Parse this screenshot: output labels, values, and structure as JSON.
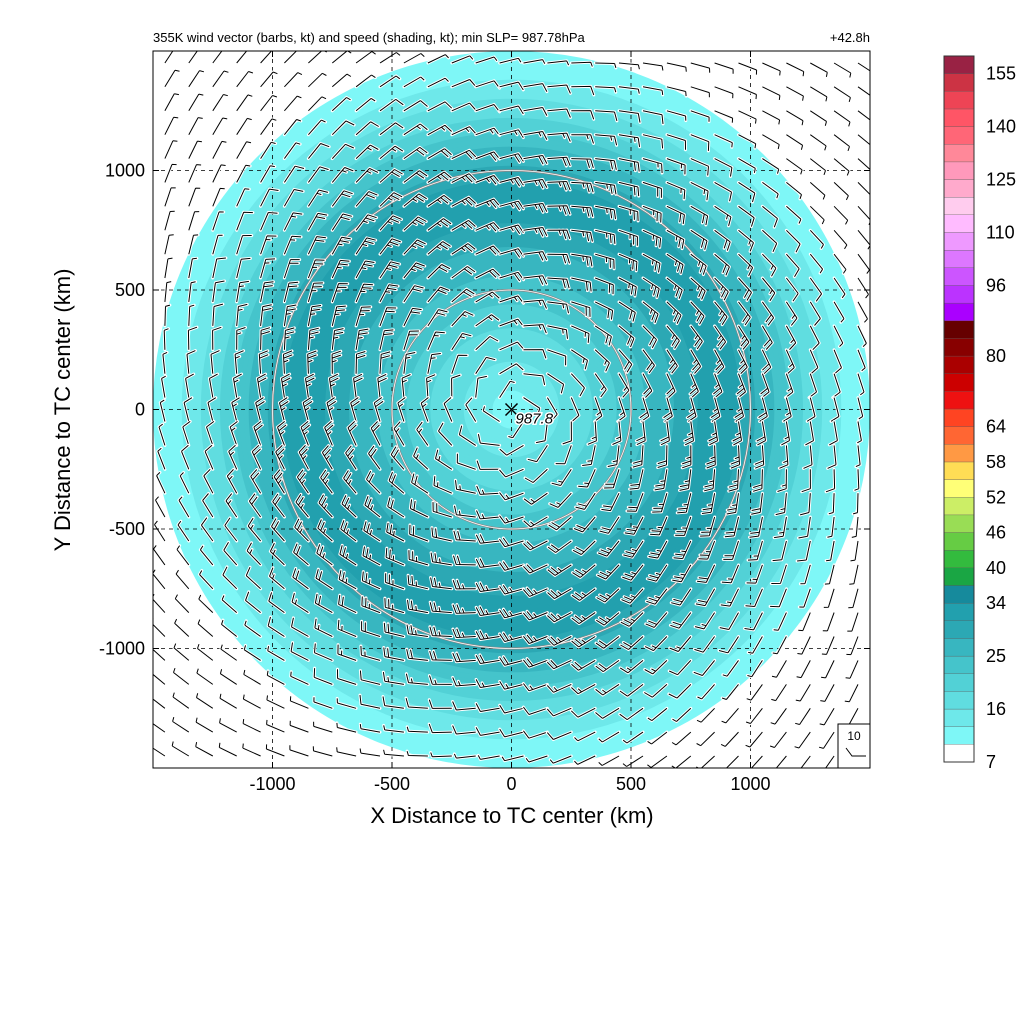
{
  "chart_data": {
    "type": "heatmap",
    "title": "355K wind vector (barbs, kt) and speed (shading, kt); min SLP= 987.78hPa",
    "forecast_hour": "+42.8h",
    "xlabel": "X Distance to TC center (km)",
    "ylabel": "Y Distance to TC center (km)",
    "xlim": [
      -1500,
      1500
    ],
    "ylim": [
      -1500,
      1500
    ],
    "xticks": [
      -1000,
      -500,
      0,
      500,
      1000
    ],
    "yticks": [
      1000,
      500,
      0,
      -500,
      -1000
    ],
    "x_tick_labels": [
      "-1000",
      "-500",
      "0",
      "500",
      "1000"
    ],
    "y_tick_labels": [
      "1000",
      "500",
      "0",
      "-500",
      "-1000"
    ],
    "grid": true,
    "center_marker": {
      "label": "987.8",
      "x": 0,
      "y": 0
    },
    "range_rings_km": [
      500,
      1000
    ],
    "ring_color": "#888888",
    "barb_reference": {
      "label": "10"
    },
    "wind_field": {
      "description_units": "kt",
      "radial_speed_profile": [
        {
          "r": 0,
          "speed": 8
        },
        {
          "r": 150,
          "speed": 12
        },
        {
          "r": 300,
          "speed": 15
        },
        {
          "r": 450,
          "speed": 19
        },
        {
          "r": 600,
          "speed": 23
        },
        {
          "r": 750,
          "speed": 27
        },
        {
          "r": 850,
          "speed": 30
        },
        {
          "r": 950,
          "speed": 28
        },
        {
          "r": 1100,
          "speed": 22
        },
        {
          "r": 1250,
          "speed": 15
        },
        {
          "r": 1400,
          "speed": 9
        },
        {
          "r": 1600,
          "speed": 5
        }
      ],
      "rotation": "counterclockwise"
    },
    "colorbar": {
      "tick_labels": [
        "155",
        "140",
        "125",
        "110",
        "96",
        "80",
        "64",
        "58",
        "52",
        "46",
        "40",
        "34",
        "25",
        "16",
        "7"
      ],
      "levels": [
        7,
        10,
        13,
        16,
        19,
        22,
        25,
        28,
        31,
        34,
        37,
        40,
        43,
        46,
        49,
        52,
        55,
        58,
        61,
        64,
        68,
        72,
        76,
        80,
        84,
        88,
        92,
        96,
        101,
        106,
        110,
        115,
        120,
        125,
        130,
        135,
        140,
        145,
        150,
        155,
        160
      ],
      "colors": [
        "#ffffff",
        "#7ef7f7",
        "#6ee8ea",
        "#60dde0",
        "#52d1d6",
        "#45c4cb",
        "#38b6c0",
        "#2ca8b4",
        "#22a0ae",
        "#168a9c",
        "#1aa644",
        "#33bb3e",
        "#66cc44",
        "#99dd55",
        "#ccee66",
        "#ffff77",
        "#ffdd55",
        "#ff9944",
        "#ff6633",
        "#ff4422",
        "#ee1111",
        "#cc0000",
        "#aa0000",
        "#880000",
        "#660000",
        "#aa00ff",
        "#bb33ff",
        "#cc55ff",
        "#dd77ff",
        "#ee99ff",
        "#ffbbff",
        "#ffccee",
        "#ffaacc",
        "#ff99bb",
        "#ff8899",
        "#ff6677",
        "#ff5566",
        "#ee4455",
        "#cc3344",
        "#992244"
      ]
    }
  }
}
